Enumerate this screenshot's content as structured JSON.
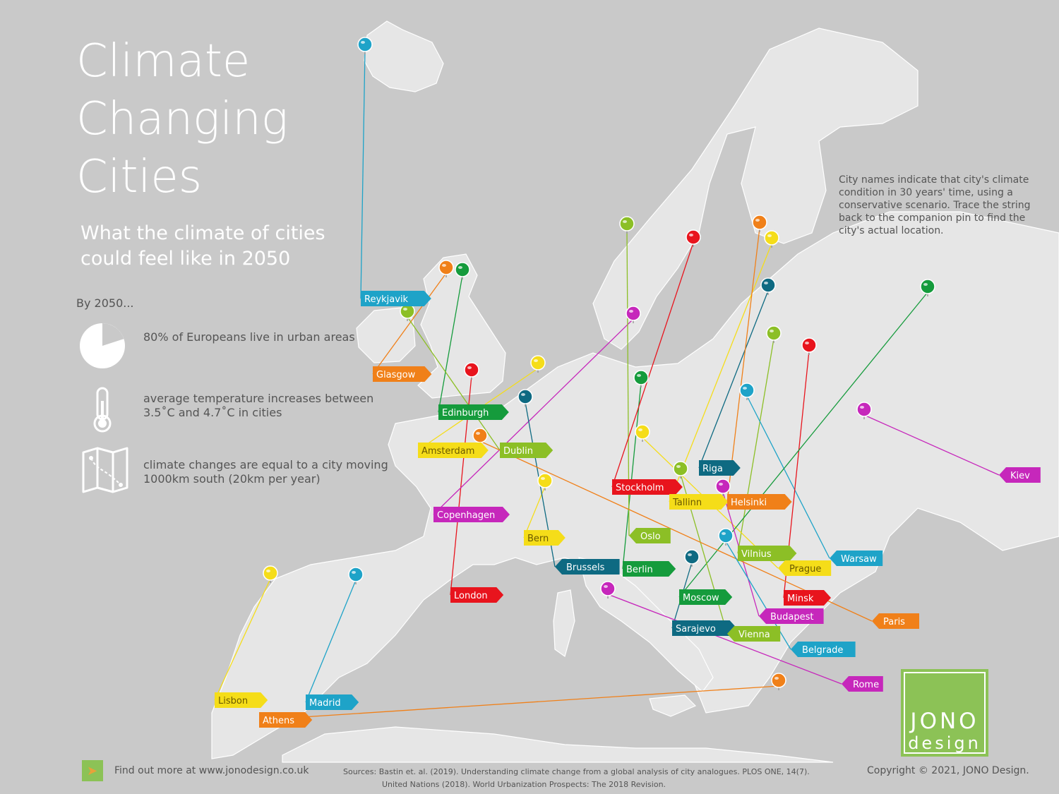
{
  "title": [
    "Climate",
    "Changing",
    "Cities"
  ],
  "subtitle": [
    "What the climate of cities",
    "could feel like in 2050"
  ],
  "by_label": "By 2050...",
  "facts": [
    {
      "icon": "pie-chart-icon",
      "text": "80% of Europeans live in urban areas",
      "percent": 80
    },
    {
      "icon": "thermometer-icon",
      "text": "average temperature increases between 3.5˚C and 4.7˚C in cities"
    },
    {
      "icon": "map-route-icon",
      "text": "climate changes are equal to a city moving 1000km south (20km per year)"
    }
  ],
  "note": "City names indicate that city's climate condition in 30 years' time, using a conservative scenario. Trace the string back to the companion pin to find the city's actual location.",
  "colors": {
    "background": "#c9c9c9",
    "land": "#e6e6e6",
    "border": "#ffffff",
    "blue": "#1ea3c8",
    "orange": "#f08019",
    "green": "#159b3c",
    "lime": "#8cbf26",
    "yellow": "#f5dd19",
    "red": "#e8141d",
    "magenta": "#c627bb",
    "teal": "#0e6a82"
  },
  "cities": [
    {
      "name": "Reykjavik",
      "color": "blue",
      "pin": [
        517,
        63
      ],
      "flag": [
        511,
        423
      ]
    },
    {
      "name": "Glasgow",
      "color": "orange",
      "pin": [
        632,
        379
      ],
      "flag": [
        528,
        530
      ]
    },
    {
      "name": "Edinburgh",
      "color": "green",
      "pin": [
        655,
        382
      ],
      "flag": [
        621,
        584
      ]
    },
    {
      "name": "Dublin",
      "color": "lime",
      "pin": [
        577,
        441
      ],
      "flag": [
        708,
        638
      ]
    },
    {
      "name": "Amsterdam",
      "color": "yellow",
      "pin": [
        762,
        514
      ],
      "flag": [
        592,
        638
      ]
    },
    {
      "name": "London",
      "color": "red",
      "pin": [
        668,
        524
      ],
      "flag": [
        638,
        843
      ]
    },
    {
      "name": "Copenhagen",
      "color": "magenta",
      "pin": [
        897,
        444
      ],
      "flag": [
        614,
        729
      ]
    },
    {
      "name": "Bern",
      "color": "yellow",
      "pin": [
        772,
        681
      ],
      "flag": [
        742,
        762
      ]
    },
    {
      "name": "Brussels",
      "color": "teal",
      "pin": [
        744,
        562
      ],
      "flag": [
        786,
        803
      ]
    },
    {
      "name": "Berlin",
      "color": "green",
      "pin": [
        908,
        535
      ],
      "flag": [
        882,
        806
      ]
    },
    {
      "name": "Oslo",
      "color": "lime",
      "pin": [
        888,
        317
      ],
      "flag": [
        891,
        759
      ]
    },
    {
      "name": "Stockholm",
      "color": "red",
      "pin": [
        982,
        336
      ],
      "flag": [
        867,
        690
      ]
    },
    {
      "name": "Riga",
      "color": "teal",
      "pin": [
        1088,
        404
      ],
      "flag": [
        990,
        663
      ]
    },
    {
      "name": "Tallinn",
      "color": "yellow",
      "pin": [
        1093,
        337
      ],
      "flag": [
        948,
        711
      ]
    },
    {
      "name": "Helsinki",
      "color": "orange",
      "pin": [
        1076,
        315
      ],
      "flag": [
        1030,
        711
      ]
    },
    {
      "name": "Vilnius",
      "color": "lime",
      "pin": [
        1096,
        472
      ],
      "flag": [
        1045,
        784
      ]
    },
    {
      "name": "Warsaw",
      "color": "blue",
      "pin": [
        1058,
        553
      ],
      "flag": [
        1175,
        791
      ]
    },
    {
      "name": "Prague",
      "color": "yellow",
      "pin": [
        910,
        612
      ],
      "flag": [
        1102,
        805
      ]
    },
    {
      "name": "Minsk",
      "color": "red",
      "pin": [
        1146,
        489
      ],
      "flag": [
        1110,
        847
      ]
    },
    {
      "name": "Moscow",
      "color": "green",
      "pin": [
        1314,
        406
      ],
      "flag": [
        962,
        846
      ]
    },
    {
      "name": "Budapest",
      "color": "magenta",
      "pin": [
        1024,
        689
      ],
      "flag": [
        1075,
        873
      ]
    },
    {
      "name": "Sarajevo",
      "color": "teal",
      "pin": [
        980,
        789
      ],
      "flag": [
        952,
        890
      ]
    },
    {
      "name": "Vienna",
      "color": "lime",
      "pin": [
        964,
        664
      ],
      "flag": [
        1030,
        898
      ]
    },
    {
      "name": "Kiev",
      "color": "magenta",
      "pin": [
        1224,
        580
      ],
      "flag": [
        1415,
        673
      ]
    },
    {
      "name": "Paris",
      "color": "orange",
      "pin": [
        680,
        617
      ],
      "flag": [
        1235,
        880
      ]
    },
    {
      "name": "Belgrade",
      "color": "blue",
      "pin": [
        1028,
        759
      ],
      "flag": [
        1120,
        920
      ]
    },
    {
      "name": "Rome",
      "color": "magenta",
      "pin": [
        861,
        834
      ],
      "flag": [
        1192,
        969
      ]
    },
    {
      "name": "Lisbon",
      "color": "yellow",
      "pin": [
        383,
        812
      ],
      "flag": [
        304,
        992
      ]
    },
    {
      "name": "Madrid",
      "color": "blue",
      "pin": [
        504,
        814
      ],
      "flag": [
        433,
        995
      ]
    },
    {
      "name": "Athens",
      "color": "orange",
      "pin": [
        1103,
        964
      ],
      "flag": [
        367,
        1020
      ]
    }
  ],
  "footer": {
    "find_out": "Find out more at www.jonodesign.co.uk",
    "sources_line1": "Sources:  Bastin et. al. (2019). Understanding climate change from a global analysis of city analogues. PLOS ONE, 14(7).",
    "sources_line2": "United Nations (2018). World Urbanization Prospects: The 2018 Revision.",
    "copyright": "Copyright © 2021, JONO Design."
  },
  "logo": {
    "line1": "JONO",
    "line2": "design"
  }
}
